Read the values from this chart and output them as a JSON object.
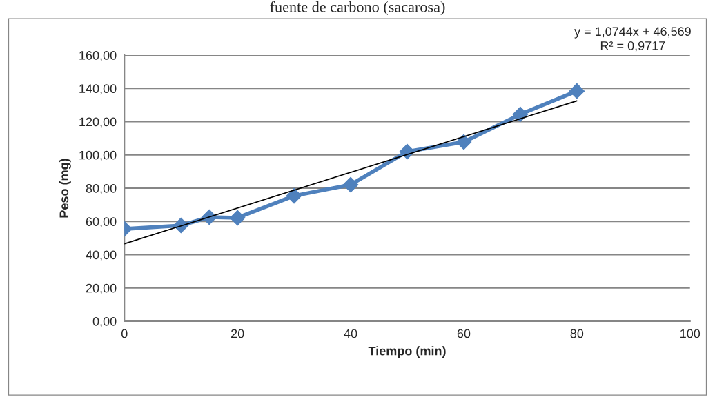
{
  "chart_data": {
    "type": "line",
    "title": "fuente de carbono (sacarosa)",
    "xlabel": "Tiempo (min)",
    "ylabel": "Peso (mg)",
    "series": [
      {
        "type": "line",
        "color": "#4f81bd",
        "marker": "diamond",
        "x": [
          0,
          10,
          15,
          20,
          30,
          40,
          50,
          60,
          70,
          80
        ],
        "values": [
          55.5,
          57.6,
          62.6,
          62.2,
          75.4,
          82.1,
          102.0,
          107.8,
          124.4,
          138.4
        ]
      },
      {
        "type": "line",
        "color": "#000000",
        "marker": "none",
        "x": [
          0,
          80
        ],
        "values": [
          46.6,
          132.5
        ]
      }
    ],
    "annotations": [
      "y = 1,0744x + 46,569\nR² = 0,9717"
    ],
    "xlim": [
      0,
      100
    ],
    "xticks": [
      0,
      20,
      40,
      60,
      80,
      100
    ],
    "ylim": [
      0,
      160
    ],
    "yticks": [
      {
        "value": 0,
        "label": "0,00"
      },
      {
        "value": 20,
        "label": "20,00"
      },
      {
        "value": 40,
        "label": "40,00"
      },
      {
        "value": 60,
        "label": "60,00"
      },
      {
        "value": 80,
        "label": "80,00"
      },
      {
        "value": 100,
        "label": "100,00"
      },
      {
        "value": 120,
        "label": "120,00"
      },
      {
        "value": 140,
        "label": "140,00"
      },
      {
        "value": 160,
        "label": "160,00"
      }
    ],
    "grid": "y"
  }
}
